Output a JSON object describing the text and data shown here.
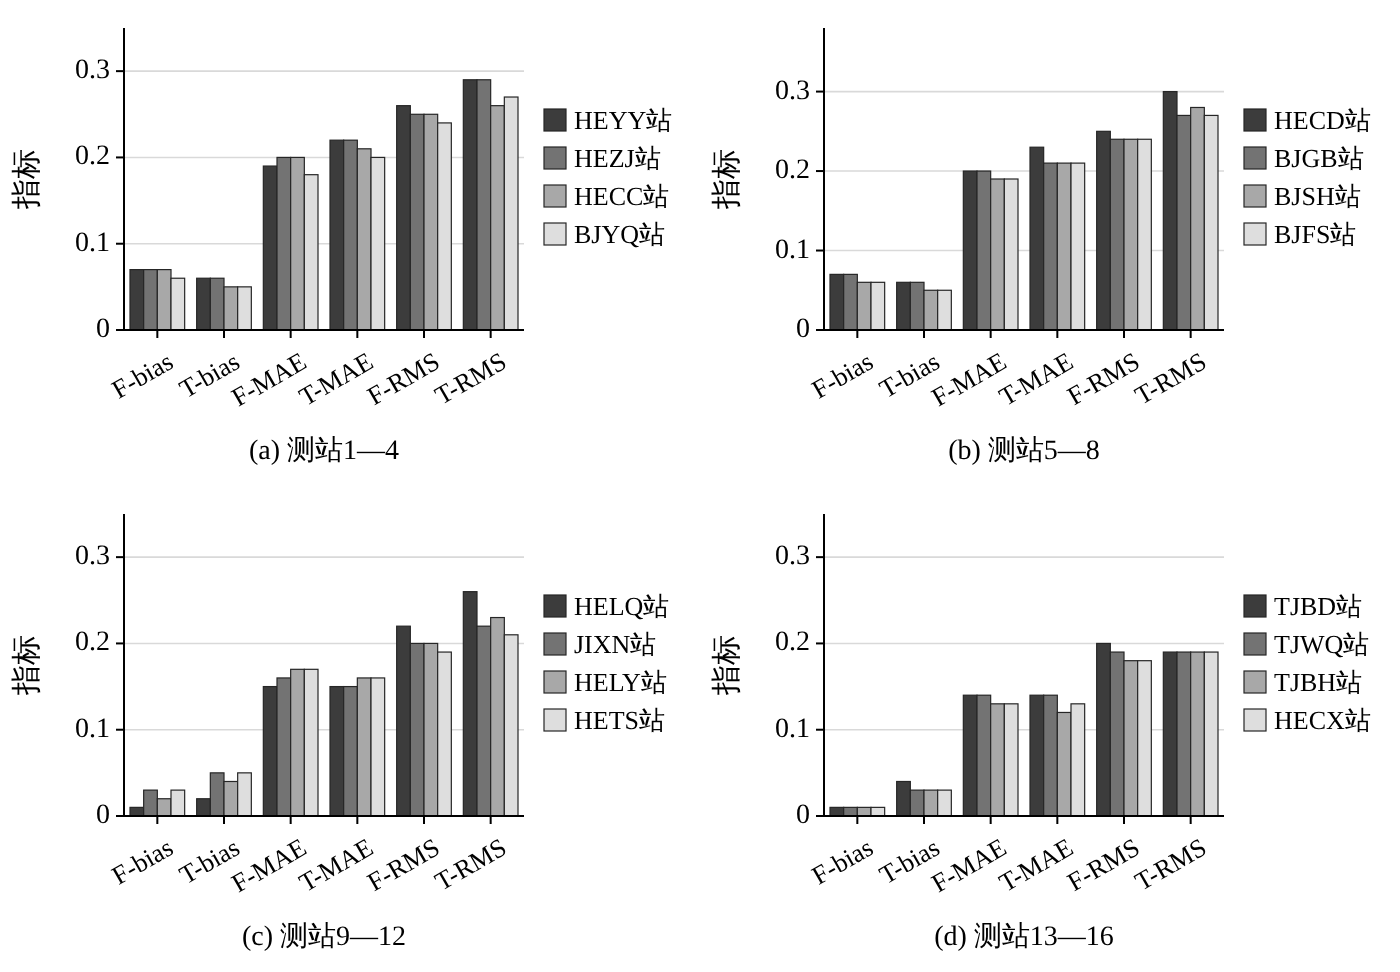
{
  "chart_data": [
    {
      "type": "bar",
      "title": "(a) 测站1—4",
      "ylabel": "指标",
      "categories": [
        "F-bias",
        "T-bias",
        "F-MAE",
        "T-MAE",
        "F-RMS",
        "T-RMS"
      ],
      "series": [
        {
          "name": "HEYY站",
          "color": "#3c3c3c",
          "values": [
            0.07,
            0.06,
            0.19,
            0.22,
            0.26,
            0.29
          ]
        },
        {
          "name": "HEZJ站",
          "color": "#737373",
          "values": [
            0.07,
            0.06,
            0.2,
            0.22,
            0.25,
            0.29
          ]
        },
        {
          "name": "HECC站",
          "color": "#a8a8a8",
          "values": [
            0.07,
            0.05,
            0.2,
            0.21,
            0.25,
            0.26
          ]
        },
        {
          "name": "BJYQ站",
          "color": "#dedede",
          "values": [
            0.06,
            0.05,
            0.18,
            0.2,
            0.24,
            0.27
          ]
        }
      ],
      "ylim": [
        0,
        0.35
      ],
      "yticks": [
        0,
        0.1,
        0.2,
        0.3
      ],
      "grid": "y",
      "legend": "right"
    },
    {
      "type": "bar",
      "title": "(b) 测站5—8",
      "ylabel": "指标",
      "categories": [
        "F-bias",
        "T-bias",
        "F-MAE",
        "T-MAE",
        "F-RMS",
        "T-RMS"
      ],
      "series": [
        {
          "name": "HECD站",
          "color": "#3c3c3c",
          "values": [
            0.07,
            0.06,
            0.2,
            0.23,
            0.25,
            0.3
          ]
        },
        {
          "name": "BJGB站",
          "color": "#737373",
          "values": [
            0.07,
            0.06,
            0.2,
            0.21,
            0.24,
            0.27
          ]
        },
        {
          "name": "BJSH站",
          "color": "#a8a8a8",
          "values": [
            0.06,
            0.05,
            0.19,
            0.21,
            0.24,
            0.28
          ]
        },
        {
          "name": "BJFS站",
          "color": "#dedede",
          "values": [
            0.06,
            0.05,
            0.19,
            0.21,
            0.24,
            0.27
          ]
        }
      ],
      "ylim": [
        0,
        0.38
      ],
      "yticks": [
        0,
        0.1,
        0.2,
        0.3
      ],
      "grid": "y",
      "legend": "right"
    },
    {
      "type": "bar",
      "title": "(c) 测站9—12",
      "ylabel": "指标",
      "categories": [
        "F-bias",
        "T-bias",
        "F-MAE",
        "T-MAE",
        "F-RMS",
        "T-RMS"
      ],
      "series": [
        {
          "name": "HELQ站",
          "color": "#3c3c3c",
          "values": [
            0.01,
            0.02,
            0.15,
            0.15,
            0.22,
            0.26
          ]
        },
        {
          "name": "JIXN站",
          "color": "#737373",
          "values": [
            0.03,
            0.05,
            0.16,
            0.15,
            0.2,
            0.22
          ]
        },
        {
          "name": "HELY站",
          "color": "#a8a8a8",
          "values": [
            0.02,
            0.04,
            0.17,
            0.16,
            0.2,
            0.23
          ]
        },
        {
          "name": "HETS站",
          "color": "#dedede",
          "values": [
            0.03,
            0.05,
            0.17,
            0.16,
            0.19,
            0.21
          ]
        }
      ],
      "ylim": [
        0,
        0.35
      ],
      "yticks": [
        0,
        0.1,
        0.2,
        0.3
      ],
      "grid": "y",
      "legend": "right"
    },
    {
      "type": "bar",
      "title": "(d) 测站13—16",
      "ylabel": "指标",
      "categories": [
        "F-bias",
        "T-bias",
        "F-MAE",
        "T-MAE",
        "F-RMS",
        "T-RMS"
      ],
      "series": [
        {
          "name": "TJBD站",
          "color": "#3c3c3c",
          "values": [
            0.01,
            0.04,
            0.14,
            0.14,
            0.2,
            0.19
          ]
        },
        {
          "name": "TJWQ站",
          "color": "#737373",
          "values": [
            0.01,
            0.03,
            0.14,
            0.14,
            0.19,
            0.19
          ]
        },
        {
          "name": "TJBH站",
          "color": "#a8a8a8",
          "values": [
            0.01,
            0.03,
            0.13,
            0.12,
            0.18,
            0.19
          ]
        },
        {
          "name": "HECX站",
          "color": "#dedede",
          "values": [
            0.01,
            0.03,
            0.13,
            0.13,
            0.18,
            0.19
          ]
        }
      ],
      "ylim": [
        0,
        0.35
      ],
      "yticks": [
        0,
        0.1,
        0.2,
        0.3
      ],
      "grid": "y",
      "legend": "right"
    }
  ]
}
